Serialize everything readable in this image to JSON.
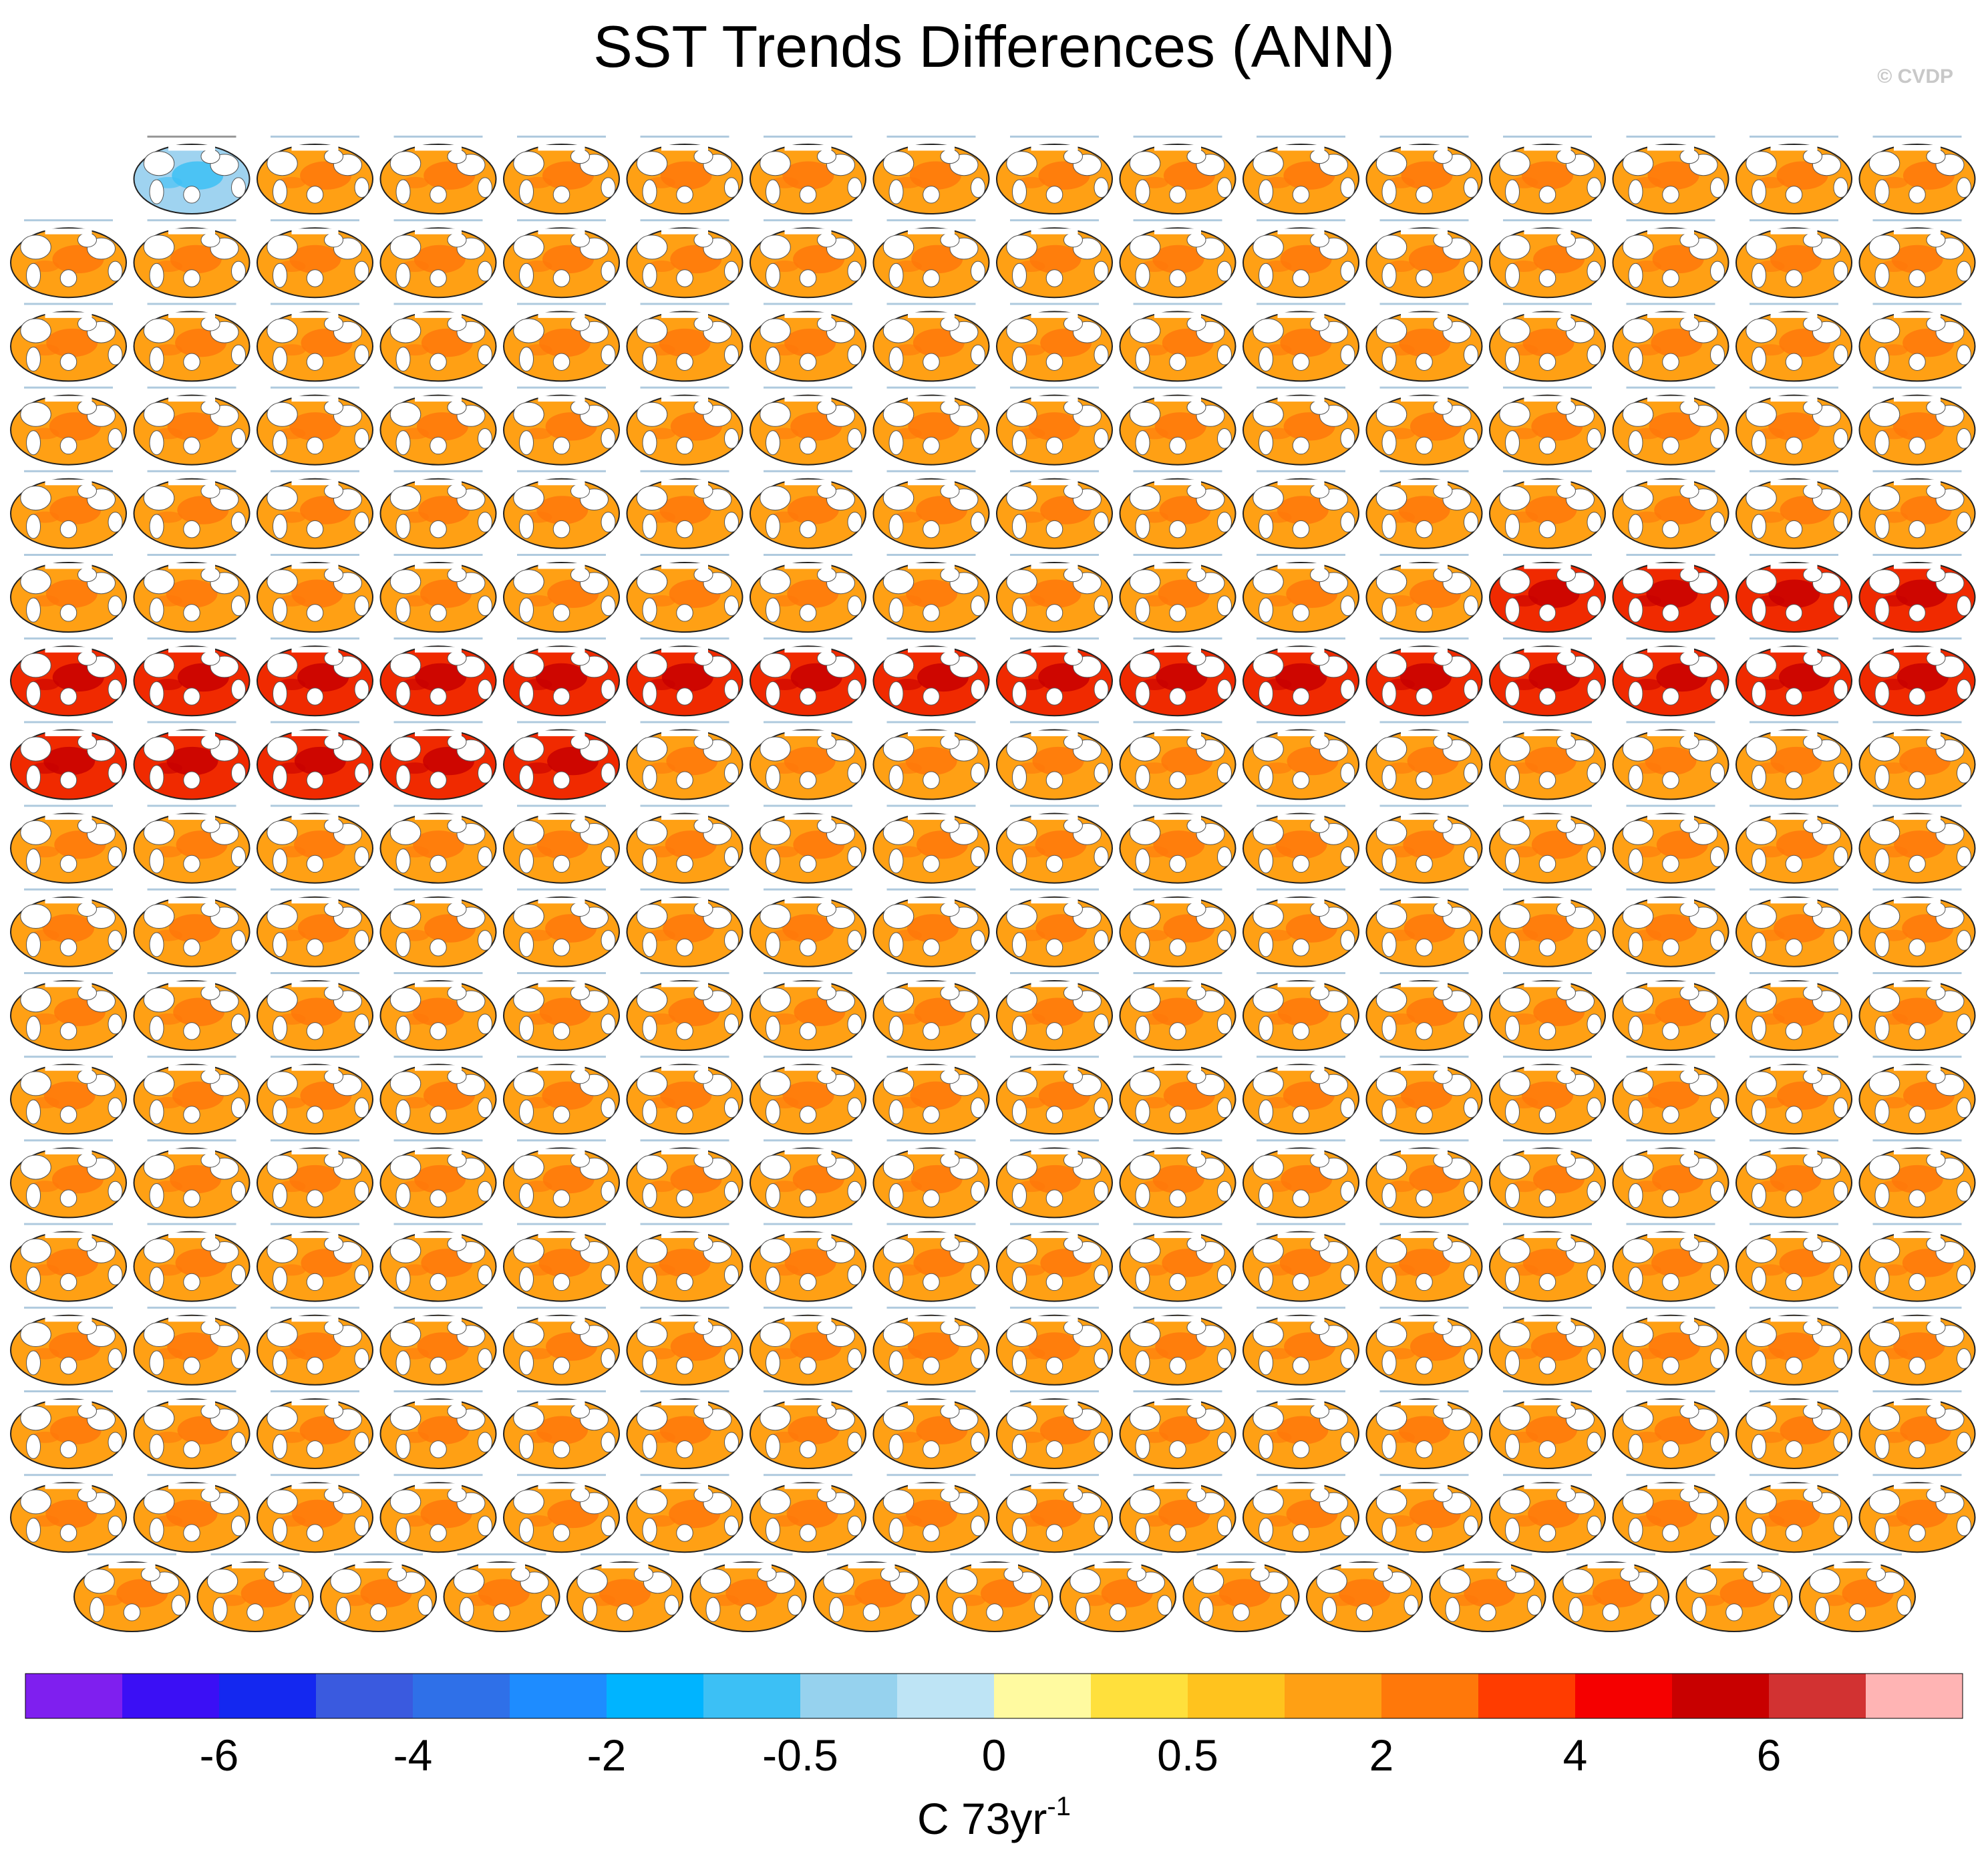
{
  "title": "SST Trends Differences (ANN)",
  "watermark": "© CVDP",
  "colorbar": {
    "colors": [
      "#7f1fef",
      "#3b0ff5",
      "#1428f0",
      "#3a5adf",
      "#2f70e8",
      "#1e8cff",
      "#00b4ff",
      "#3cc0f5",
      "#96d2ee",
      "#bee4f5",
      "#fffaa0",
      "#ffe03c",
      "#ffc31e",
      "#ffa014",
      "#ff780a",
      "#ff3c00",
      "#f50000",
      "#c80000",
      "#d23232",
      "#ffb4b4"
    ],
    "ticks": [
      -6,
      -4,
      -2,
      -0.5,
      0,
      0.5,
      2,
      4,
      6
    ],
    "units": "C 73yr",
    "units_exponent": "-1"
  }
}
